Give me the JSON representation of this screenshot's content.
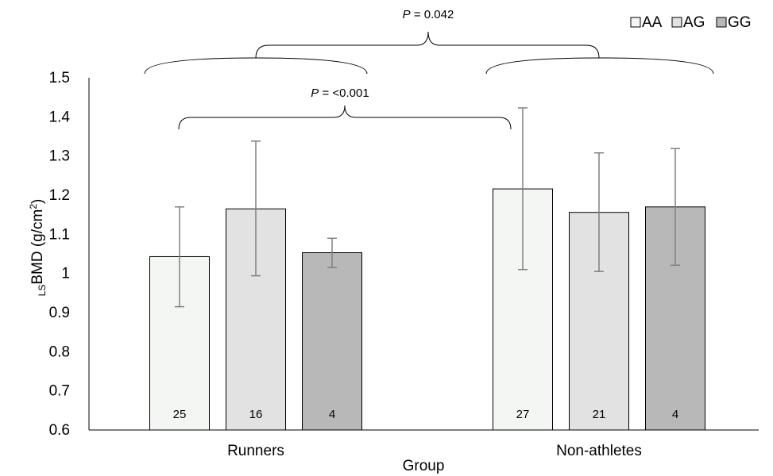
{
  "chart_data": {
    "type": "bar",
    "categories": [
      "Runners",
      "Non-athletes"
    ],
    "xlabel": "Group",
    "ylabel_sub": "LS",
    "ylabel_main": "BMD (g/cm",
    "ylabel_sup": "2",
    "ylabel_close": ")",
    "ylim": [
      0.6,
      1.5
    ],
    "yticks": [
      "0.6",
      "0.7",
      "0.8",
      "0.9",
      "1",
      "1.1",
      "1.2",
      "1.3",
      "1.4",
      "1.5"
    ],
    "legend_position": "top-right",
    "grid": false,
    "series": [
      {
        "name": "AA",
        "color": "#f4f6f4",
        "values": [
          1.043,
          1.216
        ],
        "error_low": [
          0.915,
          1.01
        ],
        "error_high": [
          1.17,
          1.423
        ],
        "n": [
          "25",
          "27"
        ]
      },
      {
        "name": "AG",
        "color": "#e2e2e2",
        "values": [
          1.165,
          1.156
        ],
        "error_low": [
          0.994,
          1.005
        ],
        "error_high": [
          1.338,
          1.308
        ],
        "n": [
          "16",
          "21"
        ]
      },
      {
        "name": "GG",
        "color": "#b8b8b8",
        "values": [
          1.053,
          1.17
        ],
        "error_low": [
          1.015,
          1.021
        ],
        "error_high": [
          1.09,
          1.319
        ],
        "n": [
          "4",
          "4"
        ]
      }
    ],
    "annotations": [
      {
        "italic": "P",
        "text": " = 0.042"
      },
      {
        "italic": "P",
        "text": " = <0.001"
      }
    ]
  }
}
